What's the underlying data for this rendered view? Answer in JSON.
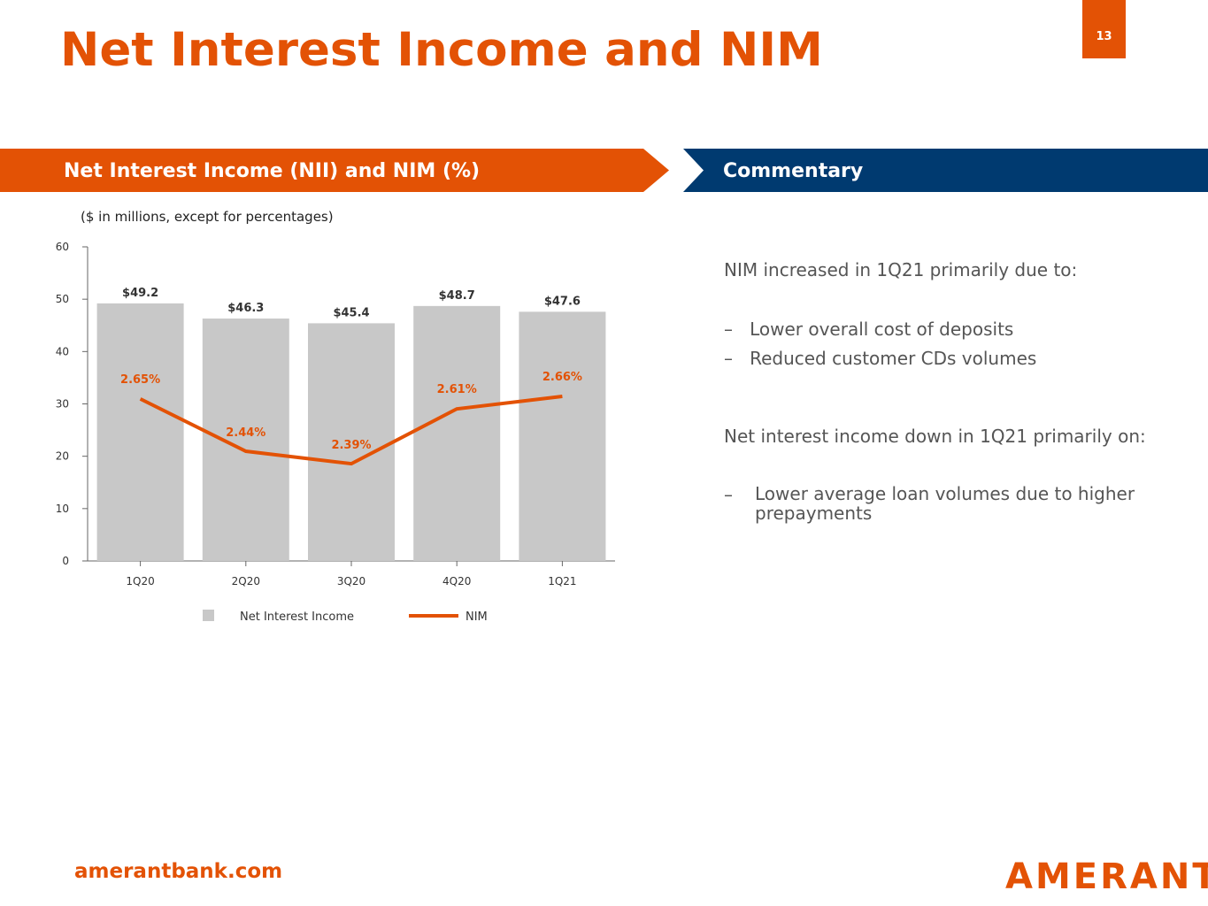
{
  "title": "Net Interest Income and NIM",
  "page_number": "13",
  "left_header": "Net Interest Income (NII) and NIM (%)",
  "right_header": "Commentary",
  "subtitle": "($ in millions, except for percentages)",
  "commentary": {
    "p1": "NIM increased in 1Q21 primarily due to:",
    "b1": [
      "Lower overall cost of deposits",
      "Reduced customer CDs volumes"
    ],
    "p2": "Net interest income down in 1Q21 primarily on:",
    "b2": [
      "Lower average loan volumes due to higher prepayments"
    ]
  },
  "footer_url": "amerantbank.com",
  "logo": "AMERANT",
  "colors": {
    "orange": "#e35205",
    "navy": "#003a70",
    "bar": "#c8c8c8"
  },
  "chart_data": {
    "type": "bar+line",
    "categories": [
      "1Q20",
      "2Q20",
      "3Q20",
      "4Q20",
      "1Q21"
    ],
    "series": [
      {
        "name": "Net Interest Income",
        "type": "bar",
        "values": [
          49.2,
          46.3,
          45.4,
          48.7,
          47.6
        ],
        "labels": [
          "$49.2",
          "$46.3",
          "$45.4",
          "$48.7",
          "$47.6"
        ]
      },
      {
        "name": "NIM",
        "type": "line",
        "values": [
          2.65,
          2.44,
          2.39,
          2.61,
          2.66
        ],
        "labels": [
          "2.65%",
          "2.44%",
          "2.39%",
          "2.61%",
          "2.66%"
        ]
      }
    ],
    "ylim": [
      0,
      60
    ],
    "yticks": [
      0,
      10,
      20,
      30,
      40,
      50,
      60
    ],
    "nim_axis_range": [
      2.0,
      3.26
    ],
    "legend": "bottom"
  }
}
